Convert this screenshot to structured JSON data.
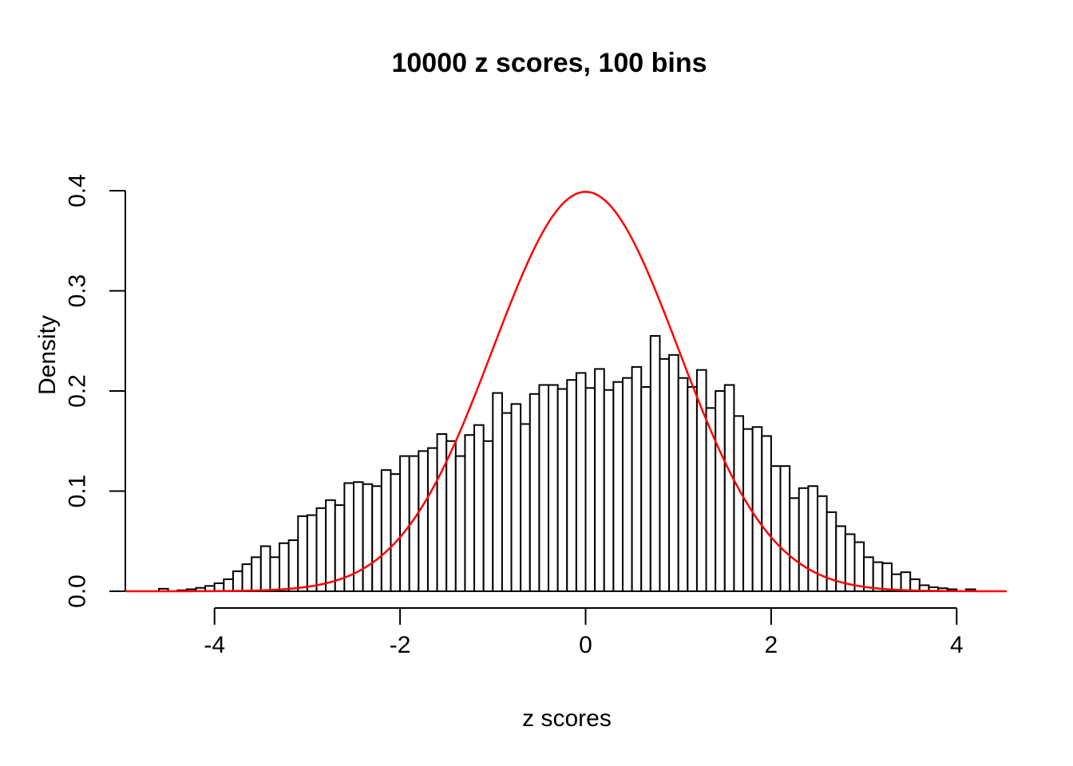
{
  "chart_data": {
    "type": "bar",
    "subtype": "histogram-with-density-curve",
    "title": "10000 z scores, 100 bins",
    "xlabel": "z scores",
    "ylabel": "Density",
    "x_ticks": [
      -4,
      -2,
      0,
      2,
      4
    ],
    "x_tick_labels": [
      "-4",
      "-2",
      "0",
      "2",
      "4"
    ],
    "y_ticks": [
      0.0,
      0.1,
      0.2,
      0.3,
      0.4
    ],
    "y_tick_labels": [
      "0.0",
      "0.1",
      "0.2",
      "0.3",
      "0.4"
    ],
    "xlim": [
      -4.95,
      4.56
    ],
    "ylim": [
      0,
      0.4
    ],
    "grid": false,
    "legend": "none",
    "bin_start": -4.6,
    "bin_width": 0.1,
    "densities": [
      0.0025,
      0,
      0.001,
      0.002,
      0.0034,
      0.0053,
      0.008,
      0.012,
      0.02,
      0.027,
      0.034,
      0.045,
      0.034,
      0.048,
      0.051,
      0.075,
      0.076,
      0.083,
      0.091,
      0.086,
      0.108,
      0.109,
      0.107,
      0.105,
      0.121,
      0.117,
      0.135,
      0.135,
      0.14,
      0.143,
      0.157,
      0.15,
      0.135,
      0.156,
      0.166,
      0.15,
      0.198,
      0.178,
      0.187,
      0.167,
      0.197,
      0.206,
      0.206,
      0.202,
      0.211,
      0.218,
      0.203,
      0.222,
      0.201,
      0.209,
      0.213,
      0.224,
      0.204,
      0.255,
      0.232,
      0.236,
      0.213,
      0.204,
      0.221,
      0.183,
      0.2,
      0.206,
      0.175,
      0.162,
      0.164,
      0.155,
      0.125,
      0.125,
      0.093,
      0.103,
      0.105,
      0.095,
      0.079,
      0.065,
      0.057,
      0.049,
      0.034,
      0.029,
      0.028,
      0.017,
      0.019,
      0.012,
      0.006,
      0.004,
      0.003,
      0.002,
      0,
      0.002
    ],
    "overlay_curve": {
      "name": "standard-normal-density",
      "mean": 0,
      "sd": 1,
      "peak_density": 0.3989,
      "color": "#FF0000"
    },
    "colors": {
      "bar_fill": "#FFFFFF",
      "bar_stroke": "#000000",
      "axis": "#000000",
      "text": "#000000",
      "background": "#FFFFFF"
    }
  }
}
